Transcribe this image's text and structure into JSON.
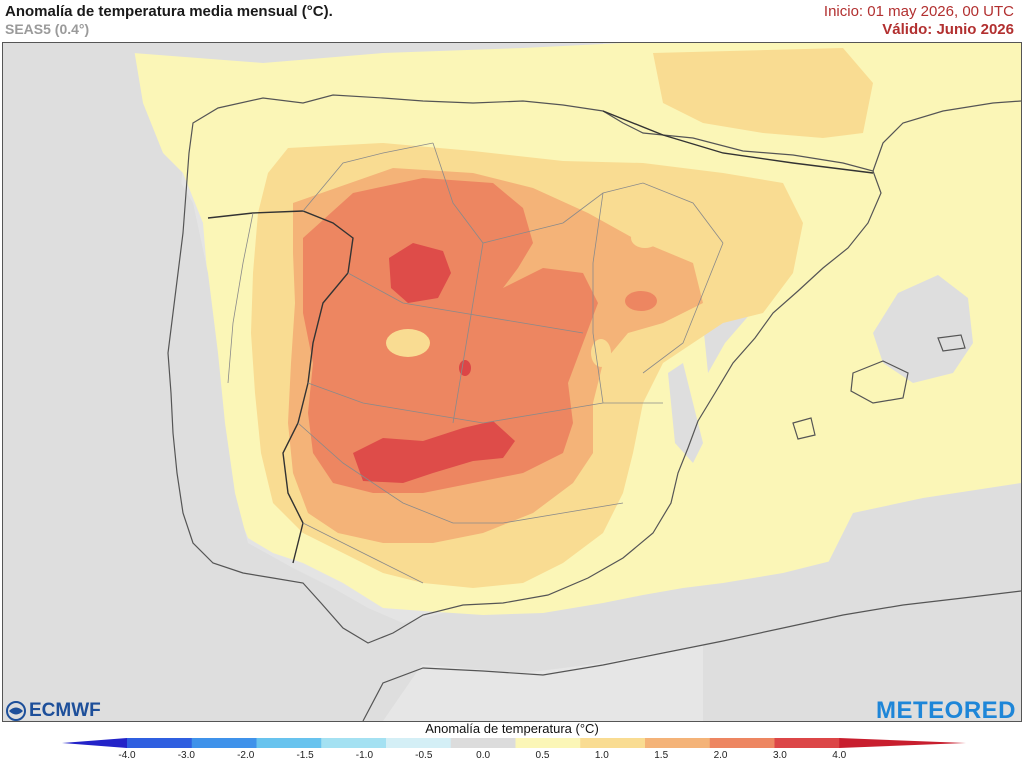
{
  "header": {
    "title": "Anomalía de temperatura media mensual (°C).",
    "model": "SEAS5 (0.4°)",
    "init": "Inicio: 01 may 2026, 00 UTC",
    "valid": "Válido: Junio 2026"
  },
  "logos": {
    "left": "ECMWF",
    "right": "METEORED"
  },
  "colorbar": {
    "title": "Anomalía de temperatura (°C)",
    "ticks": [
      "-4.0",
      "-3.0",
      "-2.0",
      "-1.5",
      "-1.0",
      "-0.5",
      "0.0",
      "0.5",
      "1.0",
      "1.5",
      "2.0",
      "3.0",
      "4.0"
    ],
    "colors": [
      "#2323c8",
      "#2f5fe0",
      "#3f92ea",
      "#68c3ee",
      "#a4e1f2",
      "#d4eff6",
      "#dcdcdc",
      "#fbf6b7",
      "#f9dc92",
      "#f4b378",
      "#ed8661",
      "#dc4647",
      "#c81e2e"
    ]
  },
  "map_colors": {
    "sea_neutral": "#dedede",
    "land_neutral": "#e4e4e4",
    "anom_0_5_1": "#fbf6b7",
    "anom_1_1_5": "#f9dc92",
    "anom_1_5_2": "#f4b378",
    "anom_2_3": "#ed8661",
    "anom_3_4": "#dc4647",
    "borders": "#7a7a7a"
  }
}
